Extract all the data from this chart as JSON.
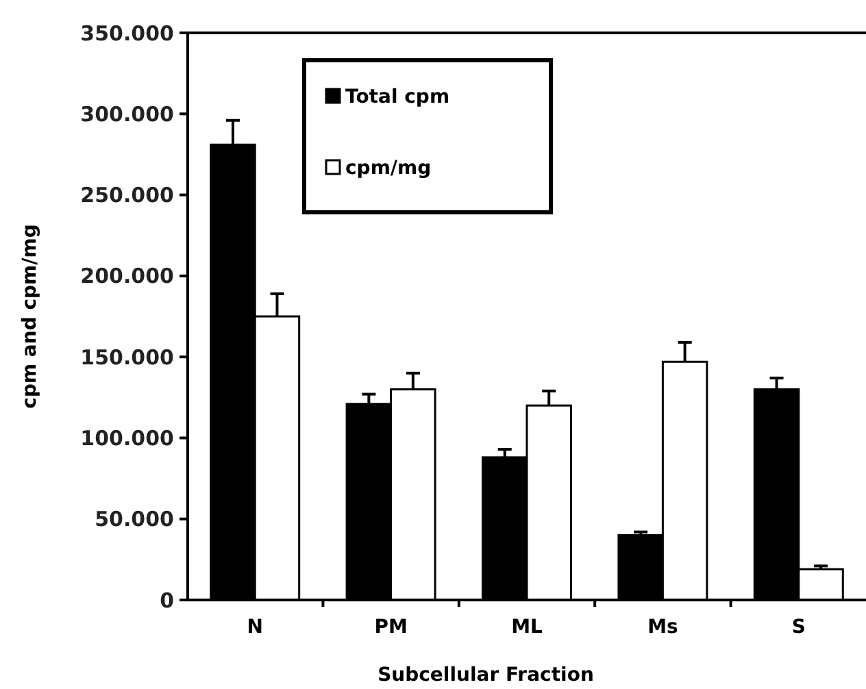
{
  "chart_data": {
    "type": "bar",
    "xlabel": "Subcellular Fraction",
    "ylabel": "cpm and cpm/mg",
    "categories": [
      "N",
      "PM",
      "ML",
      "Ms",
      "S"
    ],
    "series": [
      {
        "name": "Total cpm",
        "color": "#000000",
        "values": [
          281000,
          121000,
          88000,
          40000,
          130000
        ],
        "errors": [
          [
            281000,
            296000
          ],
          [
            121000,
            127000
          ],
          [
            88000,
            93000
          ],
          [
            40000,
            42000
          ],
          [
            130000,
            137000
          ]
        ]
      },
      {
        "name": "cpm/mg",
        "color": "#ffffff",
        "values": [
          175000,
          130000,
          120000,
          147000,
          19000
        ],
        "errors": [
          [
            175000,
            189000
          ],
          [
            130000,
            140000
          ],
          [
            120000,
            129000
          ],
          [
            147000,
            159000
          ],
          [
            19000,
            21000
          ]
        ]
      }
    ],
    "ylim": [
      0,
      350000
    ],
    "yticks": [
      0,
      {
        "value": 50000,
        "label": "50.000"
      },
      {
        "value": 100000,
        "label": "100.000"
      },
      {
        "value": 150000,
        "label": "150.000"
      },
      {
        "value": 200000,
        "label": "200.000"
      },
      {
        "value": 250000,
        "label": "250.000"
      },
      {
        "value": 300000,
        "label": "300.000"
      },
      {
        "value": 350000,
        "label": "350.000"
      }
    ],
    "grid": false,
    "legend": "top left"
  }
}
